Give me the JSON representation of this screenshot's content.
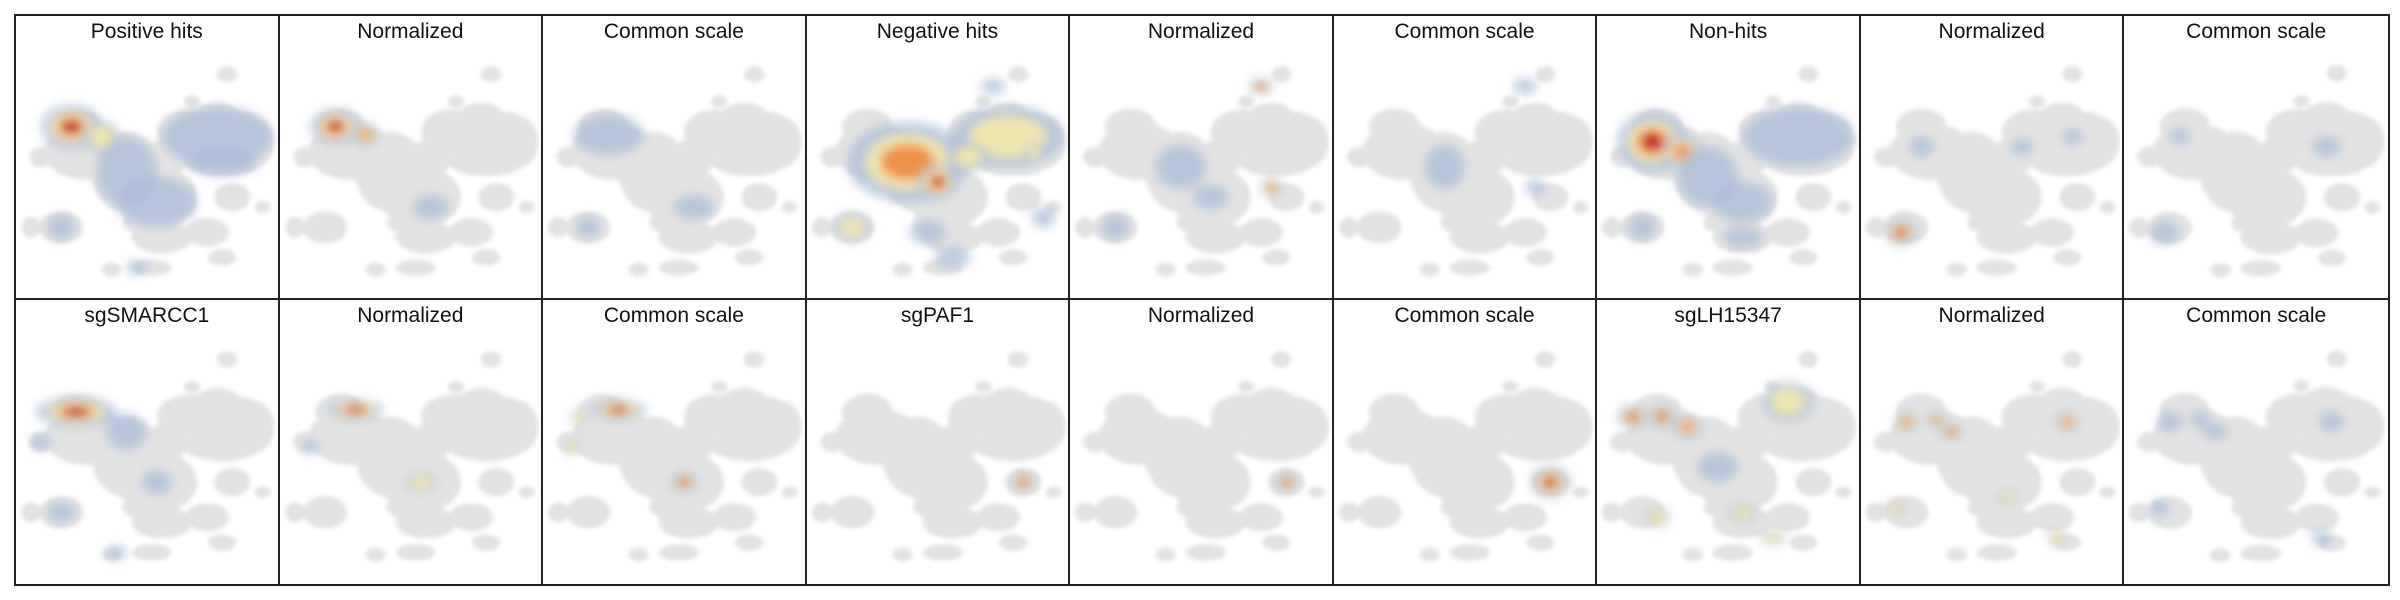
{
  "panels": [
    {
      "title": "Positive hits",
      "heat": "posHits"
    },
    {
      "title": "Normalized",
      "heat": "posNorm"
    },
    {
      "title": "Common scale",
      "heat": "posCommon"
    },
    {
      "title": "Negative hits",
      "heat": "negHits"
    },
    {
      "title": "Normalized",
      "heat": "negNorm"
    },
    {
      "title": "Common scale",
      "heat": "negCommon"
    },
    {
      "title": "Non-hits",
      "heat": "nonHits"
    },
    {
      "title": "Normalized",
      "heat": "nonNorm"
    },
    {
      "title": "Common scale",
      "heat": "nonCommon"
    },
    {
      "title": "sgSMARCC1",
      "heat": "smarccHits"
    },
    {
      "title": "Normalized",
      "heat": "smarccNorm"
    },
    {
      "title": "Common scale",
      "heat": "smarccCommon"
    },
    {
      "title": "sgPAF1",
      "heat": "pafHits"
    },
    {
      "title": "Normalized",
      "heat": "pafNorm"
    },
    {
      "title": "Common scale",
      "heat": "pafCommon"
    },
    {
      "title": "sgLH15347",
      "heat": "lhHits"
    },
    {
      "title": "Normalized",
      "heat": "lhNorm"
    },
    {
      "title": "Common scale",
      "heat": "lhCommon"
    }
  ],
  "colors": {
    "background_cells": "#e2e2e2",
    "low": "#a9bcd8",
    "mid": "#f5e9a8",
    "high": "#f08a3c",
    "peak": "#c0152b"
  }
}
